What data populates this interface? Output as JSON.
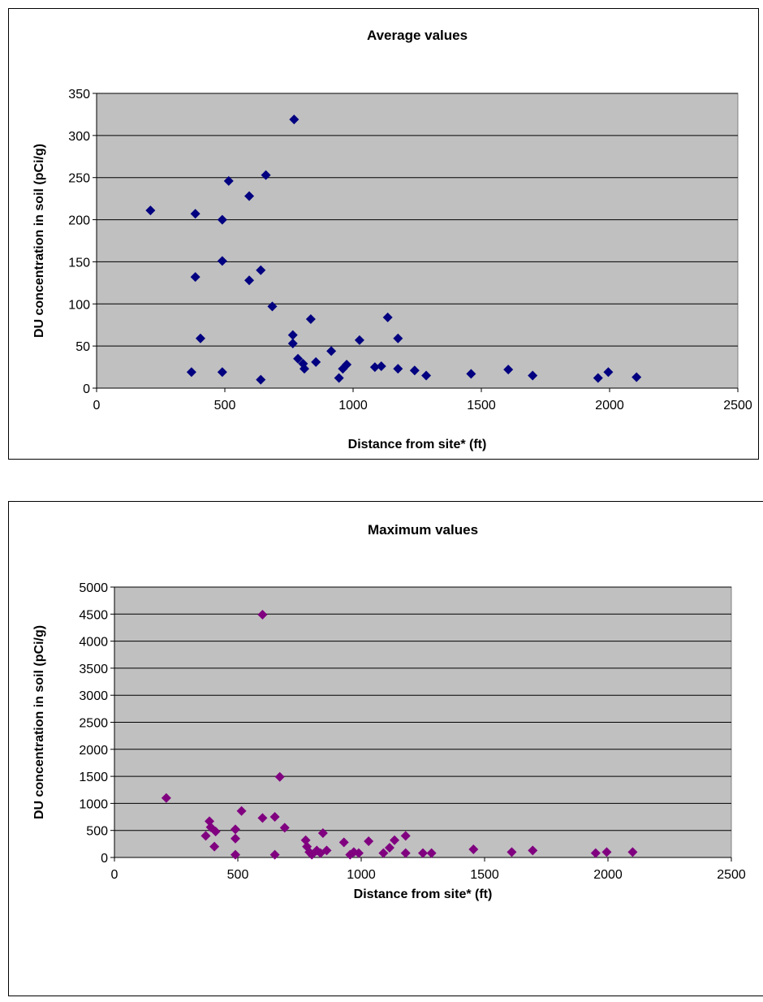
{
  "chart_data": [
    {
      "type": "scatter",
      "title": "Average values",
      "xlabel": "Distance from site* (ft)",
      "ylabel": "DU concentration in soil (pCi/g)",
      "xlim": [
        0,
        2500
      ],
      "ylim": [
        0,
        350
      ],
      "x_ticks": [
        "0",
        "500",
        "1000",
        "1500",
        "2000",
        "2500"
      ],
      "y_ticks": [
        "0",
        "50",
        "100",
        "150",
        "200",
        "250",
        "300",
        "350"
      ],
      "grid": "horizontal",
      "plot_bg": "#c0c0c0",
      "marker_color": "#000080",
      "points": [
        [
          210,
          211
        ],
        [
          385,
          207
        ],
        [
          385,
          132
        ],
        [
          405,
          59
        ],
        [
          370,
          19
        ],
        [
          490,
          200
        ],
        [
          490,
          151
        ],
        [
          490,
          19
        ],
        [
          515,
          246
        ],
        [
          595,
          228
        ],
        [
          595,
          128
        ],
        [
          640,
          140
        ],
        [
          640,
          10
        ],
        [
          660,
          253
        ],
        [
          685,
          97
        ],
        [
          770,
          319
        ],
        [
          765,
          63
        ],
        [
          765,
          53
        ],
        [
          785,
          35
        ],
        [
          805,
          29
        ],
        [
          810,
          23
        ],
        [
          835,
          82
        ],
        [
          855,
          31
        ],
        [
          915,
          44
        ],
        [
          945,
          12
        ],
        [
          960,
          23
        ],
        [
          975,
          28
        ],
        [
          1025,
          57
        ],
        [
          1085,
          25
        ],
        [
          1110,
          26
        ],
        [
          1135,
          84
        ],
        [
          1175,
          59
        ],
        [
          1175,
          23
        ],
        [
          1240,
          21
        ],
        [
          1285,
          15
        ],
        [
          1460,
          17
        ],
        [
          1605,
          22
        ],
        [
          1700,
          15
        ],
        [
          1955,
          12
        ],
        [
          1995,
          19
        ],
        [
          2105,
          13
        ]
      ]
    },
    {
      "type": "scatter",
      "title": "Maximum values",
      "xlabel": "Distance from site* (ft)",
      "ylabel": "DU concentration in soil (pCi/g)",
      "xlim": [
        0,
        2500
      ],
      "ylim": [
        0,
        5000
      ],
      "x_ticks": [
        "0",
        "500",
        "1000",
        "1500",
        "2000",
        "2500"
      ],
      "y_ticks": [
        "0",
        "500",
        "1000",
        "1500",
        "2000",
        "2500",
        "3000",
        "3500",
        "4000",
        "4500",
        "5000"
      ],
      "grid": "horizontal",
      "plot_bg": "#c0c0c0",
      "marker_color": "#800080",
      "points": [
        [
          210,
          1100
        ],
        [
          370,
          400
        ],
        [
          385,
          670
        ],
        [
          390,
          560
        ],
        [
          405,
          200
        ],
        [
          410,
          480
        ],
        [
          490,
          520
        ],
        [
          490,
          350
        ],
        [
          490,
          50
        ],
        [
          515,
          860
        ],
        [
          600,
          4490
        ],
        [
          600,
          730
        ],
        [
          650,
          750
        ],
        [
          650,
          50
        ],
        [
          670,
          1490
        ],
        [
          690,
          550
        ],
        [
          775,
          320
        ],
        [
          780,
          200
        ],
        [
          790,
          100
        ],
        [
          800,
          50
        ],
        [
          820,
          130
        ],
        [
          835,
          80
        ],
        [
          845,
          450
        ],
        [
          860,
          130
        ],
        [
          930,
          280
        ],
        [
          955,
          50
        ],
        [
          970,
          100
        ],
        [
          990,
          80
        ],
        [
          1030,
          300
        ],
        [
          1090,
          80
        ],
        [
          1115,
          180
        ],
        [
          1135,
          320
        ],
        [
          1180,
          400
        ],
        [
          1180,
          80
        ],
        [
          1250,
          80
        ],
        [
          1285,
          80
        ],
        [
          1455,
          150
        ],
        [
          1610,
          100
        ],
        [
          1695,
          130
        ],
        [
          1950,
          80
        ],
        [
          1995,
          100
        ],
        [
          2100,
          100
        ]
      ]
    }
  ]
}
